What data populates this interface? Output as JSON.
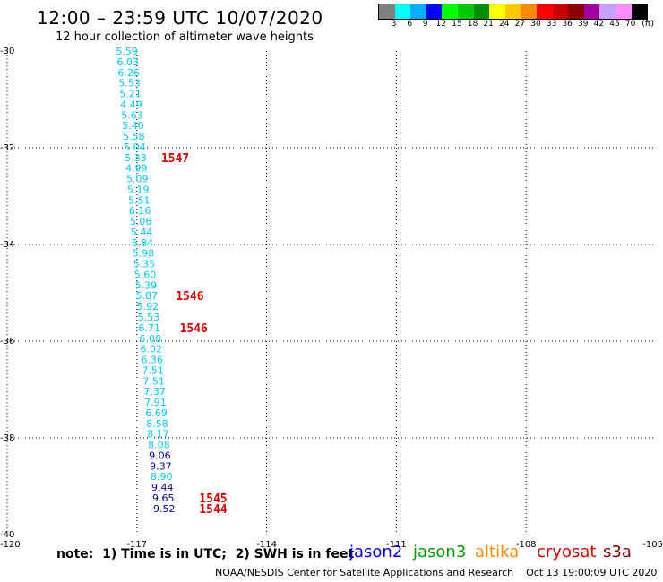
{
  "header": {
    "title": "12:00 – 23:59 UTC 10/07/2020",
    "subtitle": "12 hour collection of altimeter wave heights"
  },
  "legend": {
    "unit": "(ft)",
    "colors": [
      "#808080",
      "#00ffff",
      "#00b0ff",
      "#0000ff",
      "#00ff00",
      "#00c800",
      "#008c00",
      "#ffff00",
      "#ffc800",
      "#ff8c00",
      "#ff0000",
      "#c80000",
      "#8c0000",
      "#a000a0",
      "#c8a0ff",
      "#ff8cff",
      "#000000"
    ],
    "ticks": [
      "3",
      "6",
      "9",
      "12",
      "15",
      "18",
      "21",
      "24",
      "27",
      "30",
      "33",
      "36",
      "39",
      "42",
      "45",
      "70"
    ]
  },
  "map": {
    "lon_ticks": [
      "-120",
      "-117",
      "-114",
      "-111",
      "-108",
      "-105"
    ],
    "lat_ticks": [
      "-30",
      "-32",
      "-34",
      "-36",
      "-38",
      "-40"
    ],
    "lon_range": [
      -120,
      -105
    ],
    "lat_range": [
      -30,
      -40
    ],
    "grid": "dotted"
  },
  "track": {
    "color_light": "#00ccee",
    "color_dark": "#000099",
    "points": [
      {
        "lat": -30.0,
        "lon": -117.23,
        "value": "5.59"
      },
      {
        "lat": -30.22,
        "lon": -117.21,
        "value": "6.03"
      },
      {
        "lat": -30.44,
        "lon": -117.19,
        "value": "6.26"
      },
      {
        "lat": -30.66,
        "lon": -117.17,
        "value": "5.53"
      },
      {
        "lat": -30.88,
        "lon": -117.15,
        "value": "5.21"
      },
      {
        "lat": -31.1,
        "lon": -117.13,
        "value": "4.49"
      },
      {
        "lat": -31.32,
        "lon": -117.11,
        "value": "5.63"
      },
      {
        "lat": -31.54,
        "lon": -117.09,
        "value": "5.40"
      },
      {
        "lat": -31.76,
        "lon": -117.07,
        "value": "5.58"
      },
      {
        "lat": -31.98,
        "lon": -117.05,
        "value": "5.04"
      },
      {
        "lat": -32.2,
        "lon": -117.03,
        "value": "5.33"
      },
      {
        "lat": -32.42,
        "lon": -117.01,
        "value": "4.99"
      },
      {
        "lat": -32.64,
        "lon": -116.99,
        "value": "5.09"
      },
      {
        "lat": -32.86,
        "lon": -116.97,
        "value": "5.19"
      },
      {
        "lat": -33.08,
        "lon": -116.95,
        "value": "5.51"
      },
      {
        "lat": -33.3,
        "lon": -116.93,
        "value": "6.16"
      },
      {
        "lat": -33.52,
        "lon": -116.91,
        "value": "5.06"
      },
      {
        "lat": -33.74,
        "lon": -116.89,
        "value": "5.44"
      },
      {
        "lat": -33.96,
        "lon": -116.87,
        "value": "5.84"
      },
      {
        "lat": -34.18,
        "lon": -116.85,
        "value": "5.98"
      },
      {
        "lat": -34.4,
        "lon": -116.83,
        "value": "5.35"
      },
      {
        "lat": -34.62,
        "lon": -116.81,
        "value": "5.60"
      },
      {
        "lat": -34.84,
        "lon": -116.79,
        "value": "5.39"
      },
      {
        "lat": -35.06,
        "lon": -116.77,
        "value": "5.87"
      },
      {
        "lat": -35.28,
        "lon": -116.75,
        "value": "5.92"
      },
      {
        "lat": -35.5,
        "lon": -116.73,
        "value": "5.53"
      },
      {
        "lat": -35.72,
        "lon": -116.71,
        "value": "6.71"
      },
      {
        "lat": -35.94,
        "lon": -116.69,
        "value": "6.08"
      },
      {
        "lat": -36.16,
        "lon": -116.67,
        "value": "6.02"
      },
      {
        "lat": -36.38,
        "lon": -116.65,
        "value": "6.36"
      },
      {
        "lat": -36.6,
        "lon": -116.63,
        "value": "7.51"
      },
      {
        "lat": -36.82,
        "lon": -116.61,
        "value": "7.51"
      },
      {
        "lat": -37.04,
        "lon": -116.59,
        "value": "7.37"
      },
      {
        "lat": -37.26,
        "lon": -116.57,
        "value": "7.91"
      },
      {
        "lat": -37.48,
        "lon": -116.55,
        "value": "6.69"
      },
      {
        "lat": -37.7,
        "lon": -116.53,
        "value": "8.58"
      },
      {
        "lat": -37.92,
        "lon": -116.51,
        "value": "8.17"
      },
      {
        "lat": -38.14,
        "lon": -116.49,
        "value": "8.08"
      },
      {
        "lat": -38.36,
        "lon": -116.47,
        "value": "9.06",
        "dark": true
      },
      {
        "lat": -38.58,
        "lon": -116.45,
        "value": "9.37",
        "dark": true
      },
      {
        "lat": -38.8,
        "lon": -116.43,
        "value": "8.90"
      },
      {
        "lat": -39.02,
        "lon": -116.41,
        "value": "9.44",
        "dark": true
      },
      {
        "lat": -39.24,
        "lon": -116.39,
        "value": "9.65",
        "dark": true
      },
      {
        "lat": -39.46,
        "lon": -116.37,
        "value": "9.52",
        "dark": true
      }
    ]
  },
  "time_labels": {
    "color": "#dd0000",
    "items": [
      {
        "lat": -32.2,
        "lon": -116.44,
        "value": "1547"
      },
      {
        "lat": -35.06,
        "lon": -116.1,
        "value": "1546"
      },
      {
        "lat": -35.72,
        "lon": -116.01,
        "value": "1546"
      },
      {
        "lat": -39.24,
        "lon": -115.56,
        "value": "1545"
      },
      {
        "lat": -39.46,
        "lon": -115.56,
        "value": "1544"
      }
    ]
  },
  "note": "note:  1) Time is in UTC;  2) SWH is in feet",
  "satellites": [
    {
      "name": "jason2",
      "color": "#0000ff"
    },
    {
      "name": "jason3",
      "color": "#00a000"
    },
    {
      "name": "altika",
      "color": "#ff8c00"
    },
    {
      "name": "cryosat",
      "color": "#dd0000"
    },
    {
      "name": "s3a",
      "color": "#8c0000"
    }
  ],
  "footer": "NOAA/NESDIS Center for Satellite Applications and Research    Oct 13 19:00:09 UTC 2020"
}
